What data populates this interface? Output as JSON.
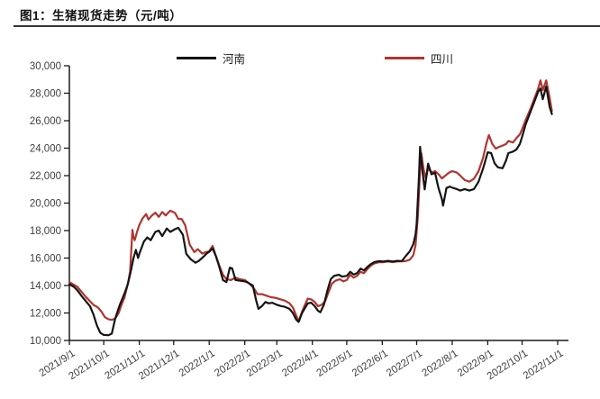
{
  "header": {
    "title": "图1：生猪现货走势（元/吨）"
  },
  "legend": [
    {
      "label": "河南",
      "color": "#141414"
    },
    {
      "label": "四川",
      "color": "#b0342f"
    }
  ],
  "chart_data": {
    "type": "line",
    "title": "图1：生猪现货走势（元/吨）",
    "unit": "元/吨",
    "grid": false,
    "legend_position": "top",
    "y_axis": {
      "min": 10000,
      "max": 30000,
      "step": 2000,
      "tick_labels": [
        "10,000",
        "12,000",
        "14,000",
        "16,000",
        "18,000",
        "20,000",
        "22,000",
        "24,000",
        "26,000",
        "28,000",
        "30,000"
      ]
    },
    "x_axis": {
      "domain_days": 426,
      "ticks": [
        {
          "d": 0,
          "label": "2021/9/1"
        },
        {
          "d": 30,
          "label": "2021/10/1"
        },
        {
          "d": 61,
          "label": "2021/11/1"
        },
        {
          "d": 91,
          "label": "2021/12/1"
        },
        {
          "d": 122,
          "label": "2022/1/1"
        },
        {
          "d": 153,
          "label": "2022/2/1"
        },
        {
          "d": 181,
          "label": "2022/3/1"
        },
        {
          "d": 212,
          "label": "2022/4/1"
        },
        {
          "d": 242,
          "label": "2022/5/1"
        },
        {
          "d": 273,
          "label": "2022/6/1"
        },
        {
          "d": 303,
          "label": "2022/7/1"
        },
        {
          "d": 334,
          "label": "2022/8/1"
        },
        {
          "d": 365,
          "label": "2022/9/1"
        },
        {
          "d": 395,
          "label": "2022/10/1"
        },
        {
          "d": 426,
          "label": "2022/11/1"
        }
      ]
    },
    "series": [
      {
        "name": "河南",
        "color": "#141414",
        "points": [
          [
            0,
            14100
          ],
          [
            4,
            13900
          ],
          [
            7,
            13650
          ],
          [
            11,
            13200
          ],
          [
            14,
            12900
          ],
          [
            18,
            12500
          ],
          [
            21,
            11900
          ],
          [
            24,
            11100
          ],
          [
            27,
            10550
          ],
          [
            30,
            10400
          ],
          [
            34,
            10380
          ],
          [
            37,
            10500
          ],
          [
            40,
            11600
          ],
          [
            44,
            12600
          ],
          [
            48,
            13400
          ],
          [
            51,
            14100
          ],
          [
            54,
            15200
          ],
          [
            56,
            16000
          ],
          [
            58,
            16600
          ],
          [
            60,
            16000
          ],
          [
            61,
            16300
          ],
          [
            65,
            17200
          ],
          [
            68,
            17500
          ],
          [
            71,
            17300
          ],
          [
            75,
            17900
          ],
          [
            78,
            18000
          ],
          [
            81,
            17600
          ],
          [
            85,
            18150
          ],
          [
            88,
            17900
          ],
          [
            92,
            18100
          ],
          [
            95,
            18200
          ],
          [
            99,
            17700
          ],
          [
            102,
            16300
          ],
          [
            106,
            15900
          ],
          [
            110,
            15660
          ],
          [
            113,
            15800
          ],
          [
            117,
            16100
          ],
          [
            120,
            16350
          ],
          [
            122,
            16450
          ],
          [
            125,
            16700
          ],
          [
            128,
            16100
          ],
          [
            131,
            15300
          ],
          [
            134,
            14400
          ],
          [
            137,
            14250
          ],
          [
            140,
            15300
          ],
          [
            142,
            15250
          ],
          [
            145,
            14400
          ],
          [
            149,
            14350
          ],
          [
            153,
            14300
          ],
          [
            156,
            14200
          ],
          [
            160,
            14000
          ],
          [
            163,
            12900
          ],
          [
            165,
            12300
          ],
          [
            168,
            12500
          ],
          [
            171,
            12800
          ],
          [
            174,
            12700
          ],
          [
            177,
            12750
          ],
          [
            181,
            12600
          ],
          [
            185,
            12500
          ],
          [
            188,
            12450
          ],
          [
            192,
            12300
          ],
          [
            195,
            12000
          ],
          [
            198,
            11500
          ],
          [
            200,
            11350
          ],
          [
            203,
            12000
          ],
          [
            205,
            12280
          ],
          [
            208,
            12700
          ],
          [
            211,
            12750
          ],
          [
            214,
            12500
          ],
          [
            217,
            12150
          ],
          [
            219,
            12050
          ],
          [
            222,
            12600
          ],
          [
            225,
            13600
          ],
          [
            228,
            14460
          ],
          [
            231,
            14700
          ],
          [
            235,
            14790
          ],
          [
            238,
            14650
          ],
          [
            242,
            14700
          ],
          [
            245,
            15000
          ],
          [
            248,
            14800
          ],
          [
            251,
            14900
          ],
          [
            254,
            15230
          ],
          [
            257,
            15100
          ],
          [
            260,
            15350
          ],
          [
            263,
            15560
          ],
          [
            266,
            15700
          ],
          [
            270,
            15770
          ],
          [
            274,
            15750
          ],
          [
            278,
            15800
          ],
          [
            282,
            15750
          ],
          [
            286,
            15800
          ],
          [
            290,
            15770
          ],
          [
            293,
            16100
          ],
          [
            297,
            16500
          ],
          [
            300,
            17000
          ],
          [
            302,
            17700
          ],
          [
            303,
            18500
          ],
          [
            305,
            22000
          ],
          [
            306,
            24100
          ],
          [
            308,
            22300
          ],
          [
            310,
            21000
          ],
          [
            313,
            22870
          ],
          [
            316,
            22100
          ],
          [
            319,
            22200
          ],
          [
            322,
            21100
          ],
          [
            325,
            20300
          ],
          [
            326,
            19815
          ],
          [
            329,
            21100
          ],
          [
            332,
            21200
          ],
          [
            334,
            21130
          ],
          [
            338,
            21020
          ],
          [
            341,
            20910
          ],
          [
            345,
            21020
          ],
          [
            349,
            20910
          ],
          [
            353,
            21020
          ],
          [
            357,
            21560
          ],
          [
            361,
            22540
          ],
          [
            365,
            23700
          ],
          [
            368,
            23640
          ],
          [
            371,
            22900
          ],
          [
            374,
            22600
          ],
          [
            378,
            22540
          ],
          [
            381,
            23100
          ],
          [
            383,
            23640
          ],
          [
            387,
            23750
          ],
          [
            390,
            23900
          ],
          [
            393,
            24300
          ],
          [
            395,
            24840
          ],
          [
            398,
            25710
          ],
          [
            402,
            26590
          ],
          [
            406,
            27460
          ],
          [
            409,
            28120
          ],
          [
            411,
            28340
          ],
          [
            413,
            27570
          ],
          [
            416,
            28490
          ],
          [
            419,
            27000
          ],
          [
            421,
            26480
          ]
        ]
      },
      {
        "name": "四川",
        "color": "#b0342f",
        "points": [
          [
            0,
            14250
          ],
          [
            4,
            14050
          ],
          [
            7,
            13900
          ],
          [
            11,
            13500
          ],
          [
            14,
            13200
          ],
          [
            18,
            12850
          ],
          [
            21,
            12600
          ],
          [
            25,
            12400
          ],
          [
            28,
            12100
          ],
          [
            31,
            11700
          ],
          [
            34,
            11550
          ],
          [
            37,
            11500
          ],
          [
            40,
            11600
          ],
          [
            43,
            12000
          ],
          [
            46,
            12700
          ],
          [
            48,
            13110
          ],
          [
            51,
            14130
          ],
          [
            53,
            15000
          ],
          [
            55,
            18050
          ],
          [
            56,
            17500
          ],
          [
            57,
            17300
          ],
          [
            59,
            17900
          ],
          [
            61,
            18400
          ],
          [
            64,
            18900
          ],
          [
            67,
            19200
          ],
          [
            69,
            18800
          ],
          [
            72,
            19100
          ],
          [
            75,
            19300
          ],
          [
            78,
            19000
          ],
          [
            81,
            19350
          ],
          [
            84,
            19100
          ],
          [
            88,
            19450
          ],
          [
            92,
            19300
          ],
          [
            95,
            18850
          ],
          [
            98,
            18840
          ],
          [
            101,
            18400
          ],
          [
            105,
            16970
          ],
          [
            109,
            16430
          ],
          [
            112,
            16645
          ],
          [
            116,
            16320
          ],
          [
            119,
            16430
          ],
          [
            122,
            16500
          ],
          [
            125,
            16885
          ],
          [
            128,
            16100
          ],
          [
            131,
            15400
          ],
          [
            134,
            14790
          ],
          [
            137,
            14460
          ],
          [
            141,
            14400
          ],
          [
            145,
            14570
          ],
          [
            149,
            14450
          ],
          [
            153,
            14400
          ],
          [
            157,
            14130
          ],
          [
            161,
            13800
          ],
          [
            164,
            13380
          ],
          [
            168,
            13370
          ],
          [
            172,
            13260
          ],
          [
            176,
            13150
          ],
          [
            180,
            13100
          ],
          [
            184,
            13000
          ],
          [
            188,
            12900
          ],
          [
            192,
            12710
          ],
          [
            195,
            12400
          ],
          [
            198,
            11800
          ],
          [
            200,
            11380
          ],
          [
            203,
            12100
          ],
          [
            205,
            12490
          ],
          [
            208,
            13040
          ],
          [
            211,
            12990
          ],
          [
            214,
            12800
          ],
          [
            217,
            12490
          ],
          [
            220,
            12600
          ],
          [
            223,
            12820
          ],
          [
            226,
            13480
          ],
          [
            229,
            14130
          ],
          [
            232,
            14350
          ],
          [
            236,
            14460
          ],
          [
            239,
            14300
          ],
          [
            242,
            14400
          ],
          [
            245,
            14790
          ],
          [
            248,
            14570
          ],
          [
            251,
            14700
          ],
          [
            254,
            15000
          ],
          [
            257,
            14900
          ],
          [
            260,
            15200
          ],
          [
            263,
            15450
          ],
          [
            266,
            15600
          ],
          [
            270,
            15700
          ],
          [
            274,
            15700
          ],
          [
            278,
            15750
          ],
          [
            282,
            15700
          ],
          [
            286,
            15750
          ],
          [
            290,
            15770
          ],
          [
            293,
            15770
          ],
          [
            297,
            15880
          ],
          [
            300,
            16200
          ],
          [
            302,
            16900
          ],
          [
            304,
            19000
          ],
          [
            306,
            22500
          ],
          [
            307,
            23640
          ],
          [
            309,
            22500
          ],
          [
            311,
            21780
          ],
          [
            313,
            22540
          ],
          [
            316,
            22220
          ],
          [
            319,
            22330
          ],
          [
            322,
            22110
          ],
          [
            325,
            21800
          ],
          [
            328,
            22000
          ],
          [
            331,
            22200
          ],
          [
            334,
            22330
          ],
          [
            338,
            22220
          ],
          [
            341,
            22000
          ],
          [
            345,
            21670
          ],
          [
            349,
            21560
          ],
          [
            353,
            21780
          ],
          [
            357,
            22330
          ],
          [
            361,
            23310
          ],
          [
            364,
            24400
          ],
          [
            366,
            24950
          ],
          [
            369,
            24300
          ],
          [
            372,
            23970
          ],
          [
            375,
            24100
          ],
          [
            378,
            24190
          ],
          [
            381,
            24300
          ],
          [
            383,
            24520
          ],
          [
            387,
            24410
          ],
          [
            390,
            24730
          ],
          [
            393,
            25000
          ],
          [
            395,
            25390
          ],
          [
            398,
            26040
          ],
          [
            402,
            26810
          ],
          [
            406,
            27680
          ],
          [
            409,
            28340
          ],
          [
            411,
            28930
          ],
          [
            413,
            28230
          ],
          [
            416,
            28930
          ],
          [
            419,
            27680
          ],
          [
            421,
            26700
          ]
        ]
      }
    ]
  }
}
